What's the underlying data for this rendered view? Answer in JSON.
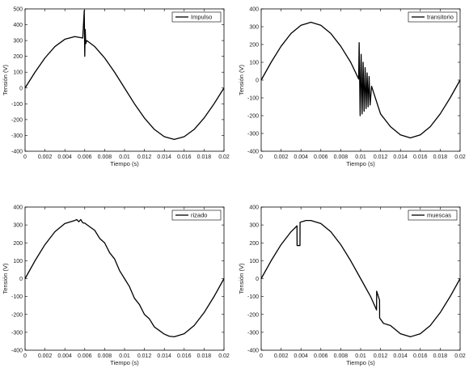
{
  "chart_data": [
    {
      "type": "line",
      "legend": "Impulso",
      "legend_position": "top-right",
      "xlabel": "Tiempo (s)",
      "ylabel": "Tensión (V)",
      "xlim": [
        0,
        0.02
      ],
      "ylim": [
        -400,
        500
      ],
      "xticks": [
        "0",
        "0.002",
        "0.004",
        "0.006",
        "0.008",
        "0.01",
        "0.012",
        "0.014",
        "0.016",
        "0.018",
        "0.02"
      ],
      "yticks": [
        "-400",
        "-300",
        "-200",
        "-100",
        "0",
        "100",
        "200",
        "300",
        "400",
        "500"
      ],
      "grid": false,
      "series": [
        {
          "name": "Impulso",
          "x": [
            0,
            0.001,
            0.002,
            0.003,
            0.004,
            0.005,
            0.0058,
            0.00595,
            0.006,
            0.00605,
            0.0061,
            0.0062,
            0.007,
            0.008,
            0.009,
            0.01,
            0.011,
            0.012,
            0.013,
            0.014,
            0.015,
            0.016,
            0.017,
            0.018,
            0.019,
            0.02
          ],
          "y": [
            0,
            100,
            190,
            262,
            308,
            325,
            316,
            490,
            200,
            370,
            280,
            300,
            262,
            190,
            100,
            0,
            -100,
            -190,
            -262,
            -308,
            -325,
            -308,
            -262,
            -190,
            -100,
            0
          ]
        }
      ]
    },
    {
      "type": "line",
      "legend": "transitorio",
      "legend_position": "top-right",
      "xlabel": "Tiempo (s)",
      "ylabel": "Tensión (V)",
      "xlim": [
        0,
        0.02
      ],
      "ylim": [
        -400,
        400
      ],
      "xticks": [
        "0",
        "0.002",
        "0.004",
        "0.006",
        "0.008",
        "0.01",
        "0.012",
        "0.014",
        "0.016",
        "0.018",
        "0.02"
      ],
      "yticks": [
        "-400",
        "-300",
        "-200",
        "-100",
        "0",
        "100",
        "200",
        "300",
        "400"
      ],
      "grid": false,
      "series": [
        {
          "name": "transitorio",
          "x": [
            0,
            0.001,
            0.002,
            0.003,
            0.004,
            0.005,
            0.006,
            0.007,
            0.008,
            0.009,
            0.0098,
            0.00985,
            0.00995,
            0.01005,
            0.01015,
            0.01025,
            0.01035,
            0.01045,
            0.01055,
            0.01065,
            0.01075,
            0.01085,
            0.01095,
            0.0111,
            0.012,
            0.013,
            0.014,
            0.015,
            0.016,
            0.017,
            0.018,
            0.019,
            0.02
          ],
          "y": [
            0,
            100,
            190,
            262,
            308,
            325,
            308,
            262,
            190,
            100,
            6,
            210,
            -200,
            145,
            -190,
            100,
            -175,
            70,
            -160,
            40,
            -150,
            20,
            -140,
            -35,
            -190,
            -262,
            -308,
            -325,
            -308,
            -262,
            -190,
            -100,
            0
          ]
        }
      ]
    },
    {
      "type": "line",
      "legend": "rizado",
      "legend_position": "top-right",
      "xlabel": "Tiempo (s)",
      "ylabel": "Tensión (V)",
      "xlim": [
        0,
        0.02
      ],
      "ylim": [
        -400,
        400
      ],
      "xticks": [
        "0",
        "0.002",
        "0.004",
        "0.006",
        "0.008",
        "0.01",
        "0.012",
        "0.014",
        "0.016",
        "0.018",
        "0.02"
      ],
      "yticks": [
        "-400",
        "-300",
        "-200",
        "-100",
        "0",
        "100",
        "200",
        "300",
        "400"
      ],
      "grid": false,
      "series": [
        {
          "name": "rizado",
          "x": [
            0,
            0.001,
            0.002,
            0.003,
            0.004,
            0.005,
            0.0052,
            0.0054,
            0.0056,
            0.0058,
            0.006,
            0.0065,
            0.007,
            0.0075,
            0.008,
            0.0085,
            0.009,
            0.0095,
            0.01,
            0.0105,
            0.011,
            0.0115,
            0.012,
            0.0125,
            0.013,
            0.0135,
            0.014,
            0.0145,
            0.015,
            0.016,
            0.017,
            0.018,
            0.019,
            0.02
          ],
          "y": [
            0,
            100,
            190,
            262,
            308,
            325,
            330,
            318,
            330,
            312,
            310,
            290,
            270,
            225,
            200,
            145,
            110,
            45,
            0,
            -45,
            -110,
            -145,
            -200,
            -225,
            -270,
            -290,
            -310,
            -322,
            -325,
            -308,
            -262,
            -190,
            -100,
            0
          ]
        }
      ]
    },
    {
      "type": "line",
      "legend": "muescas",
      "legend_position": "top-right",
      "xlabel": "Tiempo (s)",
      "ylabel": "Tensión (V)",
      "xlim": [
        0,
        0.02
      ],
      "ylim": [
        -400,
        400
      ],
      "xticks": [
        "0",
        "0.002",
        "0.004",
        "0.006",
        "0.008",
        "0.01",
        "0.012",
        "0.014",
        "0.016",
        "0.018",
        "0.02"
      ],
      "yticks": [
        "-400",
        "-300",
        "-200",
        "-100",
        "0",
        "100",
        "200",
        "300",
        "400"
      ],
      "grid": false,
      "series": [
        {
          "name": "muescas",
          "x": [
            0,
            0.001,
            0.002,
            0.003,
            0.0036,
            0.00361,
            0.0039,
            0.00391,
            0.0042,
            0.0045,
            0.005,
            0.006,
            0.007,
            0.008,
            0.009,
            0.01,
            0.011,
            0.0116,
            0.01161,
            0.0119,
            0.01191,
            0.0123,
            0.013,
            0.014,
            0.015,
            0.016,
            0.017,
            0.018,
            0.019,
            0.02
          ],
          "y": [
            0,
            100,
            190,
            262,
            295,
            185,
            185,
            315,
            320,
            325,
            325,
            308,
            262,
            190,
            100,
            0,
            -100,
            -175,
            -70,
            -120,
            -220,
            -250,
            -262,
            -308,
            -325,
            -308,
            -262,
            -190,
            -100,
            0
          ]
        }
      ]
    }
  ]
}
